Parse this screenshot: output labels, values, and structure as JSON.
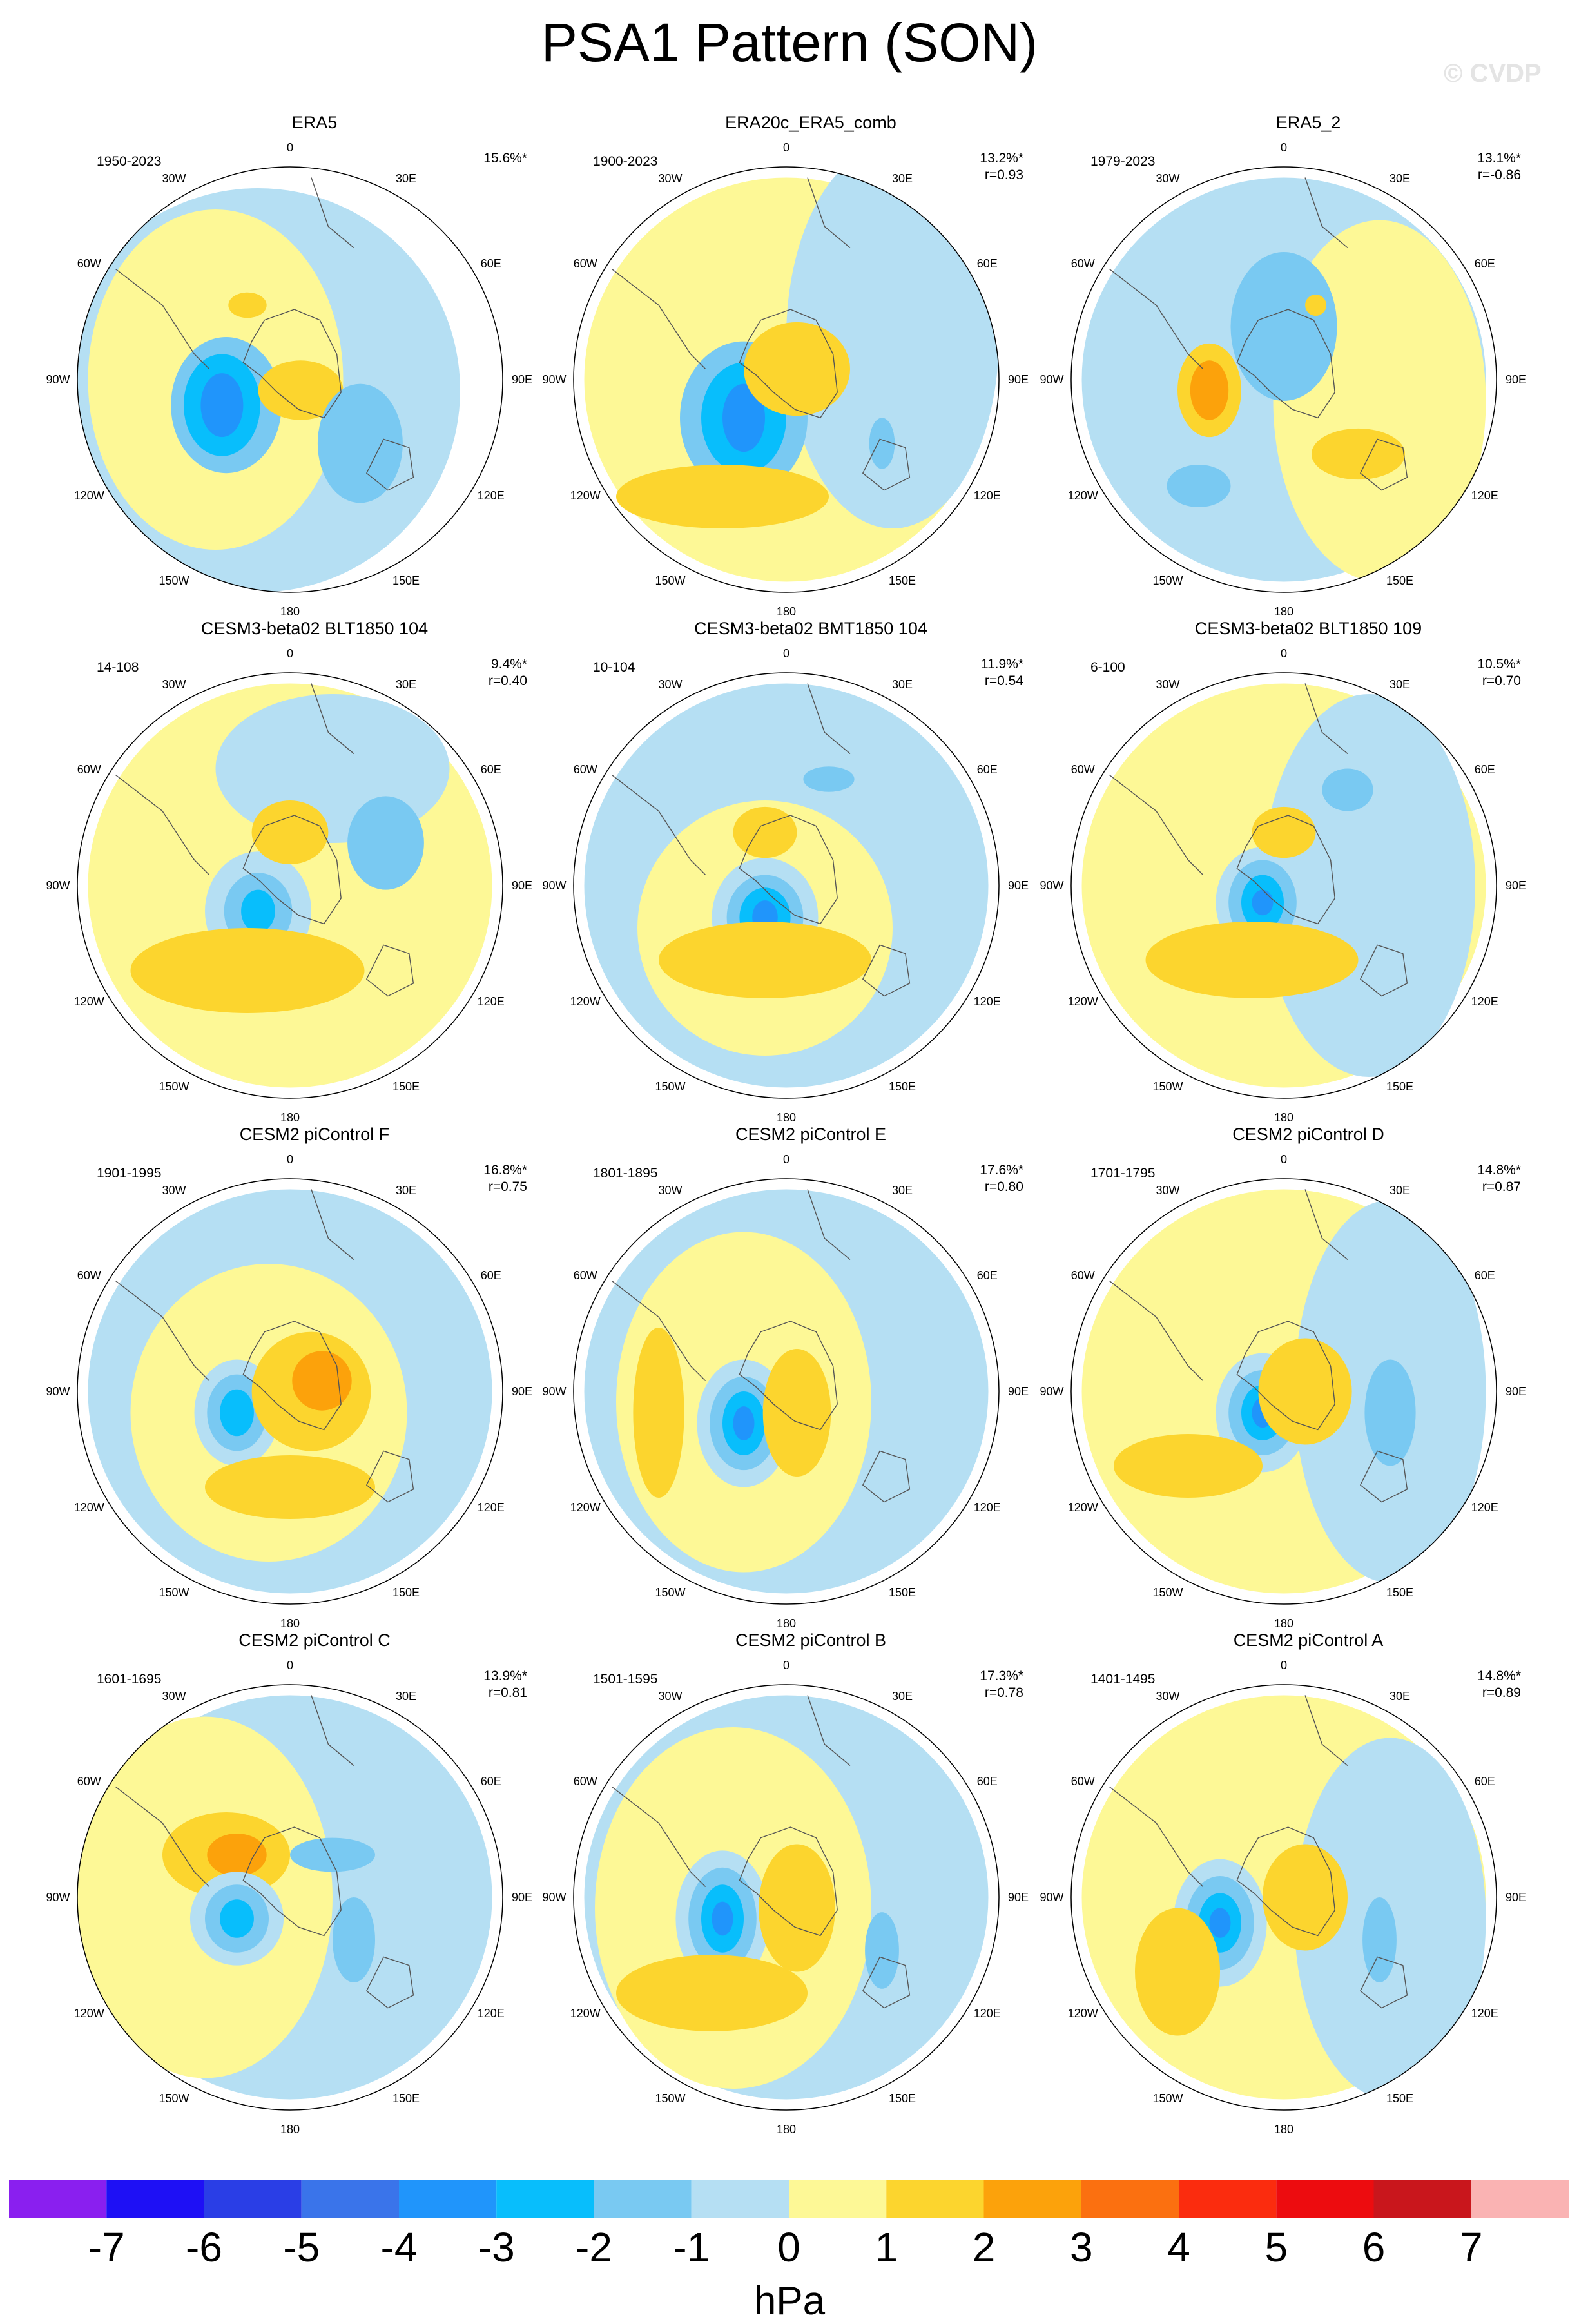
{
  "title": "PSA1 Pattern (SON)",
  "watermark": "© CVDP",
  "lon_labels": [
    "0",
    "30E",
    "60E",
    "90E",
    "120E",
    "150E",
    "180",
    "150W",
    "120W",
    "90W",
    "60W",
    "30W"
  ],
  "colorbar": {
    "units": "hPa",
    "ticks": [
      "-7",
      "-6",
      "-5",
      "-4",
      "-3",
      "-2",
      "-1",
      "0",
      "1",
      "2",
      "3",
      "4",
      "5",
      "6",
      "7"
    ],
    "colors": [
      "#8a1fef",
      "#1e10f5",
      "#2a3ee6",
      "#3a74ea",
      "#2095fb",
      "#08befc",
      "#79c9f2",
      "#b5dff3",
      "#fdf896",
      "#fcd52e",
      "#fca20b",
      "#fb7010",
      "#fb2c0e",
      "#ed0c0f",
      "#c9161c",
      "#fab3b3"
    ]
  },
  "chart_data": {
    "type": "heatmap",
    "projection": "south-polar-stereographic",
    "variable": "PSA1 Pattern (SON)",
    "units": "hPa",
    "contour_levels": [
      -7,
      -6,
      -5,
      -4,
      -3,
      -2,
      -1,
      0,
      1,
      2,
      3,
      4,
      5,
      6,
      7
    ],
    "panels": [
      {
        "title": "ERA5",
        "period": "1950-2023",
        "variance": "15.6%*",
        "r": ""
      },
      {
        "title": "ERA20c_ERA5_comb",
        "period": "1900-2023",
        "variance": "13.2%*",
        "r": "r=0.93"
      },
      {
        "title": "ERA5_2",
        "period": "1979-2023",
        "variance": "13.1%*",
        "r": "r=-0.86"
      },
      {
        "title": "CESM3-beta02 BLT1850 104",
        "period": "14-108",
        "variance": "9.4%*",
        "r": "r=0.40"
      },
      {
        "title": "CESM3-beta02 BMT1850 104",
        "period": "10-104",
        "variance": "11.9%*",
        "r": "r=0.54"
      },
      {
        "title": "CESM3-beta02 BLT1850 109",
        "period": "6-100",
        "variance": "10.5%*",
        "r": "r=0.70"
      },
      {
        "title": "CESM2 piControl F",
        "period": "1901-1995",
        "variance": "16.8%*",
        "r": "r=0.75"
      },
      {
        "title": "CESM2 piControl E",
        "period": "1801-1895",
        "variance": "17.6%*",
        "r": "r=0.80"
      },
      {
        "title": "CESM2 piControl D",
        "period": "1701-1795",
        "variance": "14.8%*",
        "r": "r=0.87"
      },
      {
        "title": "CESM2 piControl C",
        "period": "1601-1695",
        "variance": "13.9%*",
        "r": "r=0.81"
      },
      {
        "title": "CESM2 piControl B",
        "period": "1501-1595",
        "variance": "17.3%*",
        "r": "r=0.78"
      },
      {
        "title": "CESM2 piControl A",
        "period": "1401-1495",
        "variance": "14.8%*",
        "r": "r=0.89"
      }
    ]
  }
}
